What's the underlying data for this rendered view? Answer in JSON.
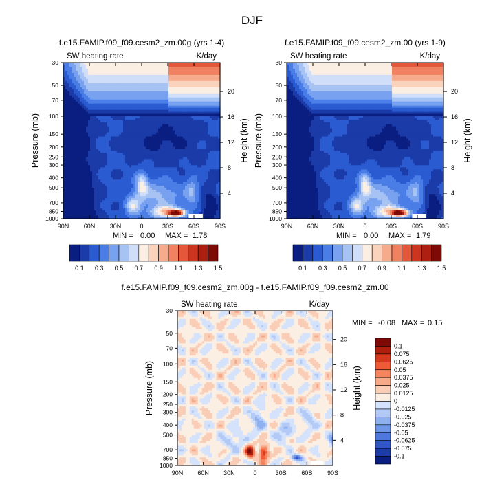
{
  "page": {
    "title": "DJF"
  },
  "chart_data": [
    {
      "type": "heatmap",
      "id": "panel1",
      "title": "f.e15.FAMIP.f09_f09.cesm2_zm.00g (yrs 1-4)",
      "left_label": "SW heating rate",
      "right_label": "K/day",
      "ylabel": "Pressure (mb)",
      "ylabel2": "Height (km)",
      "xticks": [
        "90N",
        "60N",
        "30N",
        "0",
        "30S",
        "60S",
        "90S"
      ],
      "yticks": [
        "30",
        "50",
        "70",
        "100",
        "150",
        "200",
        "250",
        "300",
        "400",
        "500",
        "700",
        "850",
        "1000"
      ],
      "y2ticks": [
        "20",
        "16",
        "12",
        "8",
        "4"
      ],
      "min_label": "MIN =",
      "min_value": "0.00",
      "max_label": "MAX =",
      "max_value": "1.78",
      "levels": [
        0.1,
        0.2,
        0.3,
        0.4,
        0.5,
        0.6,
        0.7,
        0.8,
        0.9,
        1.0,
        1.1,
        1.2,
        1.3,
        1.4,
        1.5
      ],
      "colorbar_labels": [
        "0.1",
        "0.3",
        "0.5",
        "0.7",
        "0.9",
        "1.1",
        "1.3",
        "1.5"
      ]
    },
    {
      "type": "heatmap",
      "id": "panel2",
      "title": "f.e15.FAMIP.f09_f09.cesm2_zm.00 (yrs 1-9)",
      "left_label": "SW heating rate",
      "right_label": "K/day",
      "ylabel": "Pressure (mb)",
      "ylabel2": "Height (km)",
      "xticks": [
        "90N",
        "60N",
        "30N",
        "0",
        "30S",
        "60S",
        "90S"
      ],
      "yticks": [
        "30",
        "50",
        "70",
        "100",
        "150",
        "200",
        "250",
        "300",
        "400",
        "500",
        "700",
        "850",
        "1000"
      ],
      "y2ticks": [
        "20",
        "16",
        "12",
        "8",
        "4"
      ],
      "min_label": "MIN =",
      "min_value": "0.00",
      "max_label": "MAX =",
      "max_value": "1.79",
      "levels": [
        0.1,
        0.2,
        0.3,
        0.4,
        0.5,
        0.6,
        0.7,
        0.8,
        0.9,
        1.0,
        1.1,
        1.2,
        1.3,
        1.4,
        1.5
      ],
      "colorbar_labels": [
        "0.1",
        "0.3",
        "0.5",
        "0.7",
        "0.9",
        "1.1",
        "1.3",
        "1.5"
      ]
    },
    {
      "type": "heatmap",
      "id": "panel3",
      "title": "f.e15.FAMIP.f09_f09.cesm2_zm.00g - f.e15.FAMIP.f09_f09.cesm2_zm.00",
      "left_label": "SW heating rate",
      "right_label": "K/day",
      "ylabel": "Pressure (mb)",
      "ylabel2": "Height (km)",
      "xticks": [
        "90N",
        "60N",
        "30N",
        "0",
        "30S",
        "60S",
        "90S"
      ],
      "yticks": [
        "30",
        "50",
        "70",
        "100",
        "150",
        "200",
        "250",
        "300",
        "400",
        "500",
        "700",
        "850",
        "1000"
      ],
      "y2ticks": [
        "20",
        "16",
        "12",
        "8",
        "4"
      ],
      "min_label": "MIN =",
      "min_value": "-0.08",
      "max_label": "MAX =",
      "max_value": "0.15",
      "levels": [
        -0.1,
        -0.075,
        -0.0625,
        -0.05,
        -0.0375,
        -0.025,
        -0.0125,
        0,
        0.0125,
        0.025,
        0.0375,
        0.05,
        0.0625,
        0.075,
        0.1
      ],
      "colorbar_labels": [
        "0.1",
        "0.075",
        "0.0625",
        "0.05",
        "0.0375",
        "0.025",
        "0.0125",
        "0",
        "-0.0125",
        "-0.025",
        "-0.0375",
        "-0.05",
        "-0.0625",
        "-0.075",
        "-0.1"
      ]
    }
  ],
  "colors": {
    "seq": [
      "#0a1e82",
      "#1a3ba8",
      "#2b5bd0",
      "#4a7ee6",
      "#78a2ef",
      "#a6c3f4",
      "#d0defa",
      "#fbeee2",
      "#fbd2bc",
      "#f6ac8c",
      "#f08261",
      "#e4573b",
      "#cc3520",
      "#ad1f10",
      "#7e0a05"
    ],
    "div": [
      "#7e0a05",
      "#b01e0e",
      "#d8381e",
      "#f05a36",
      "#f5845f",
      "#f7aa8a",
      "#f9cdb6",
      "#fbeee2",
      "#d4e2fb",
      "#b2caf5",
      "#8fb0ef",
      "#6d95e8",
      "#4f78de",
      "#3056c8",
      "#1a3ba8",
      "#0a1e82"
    ]
  }
}
